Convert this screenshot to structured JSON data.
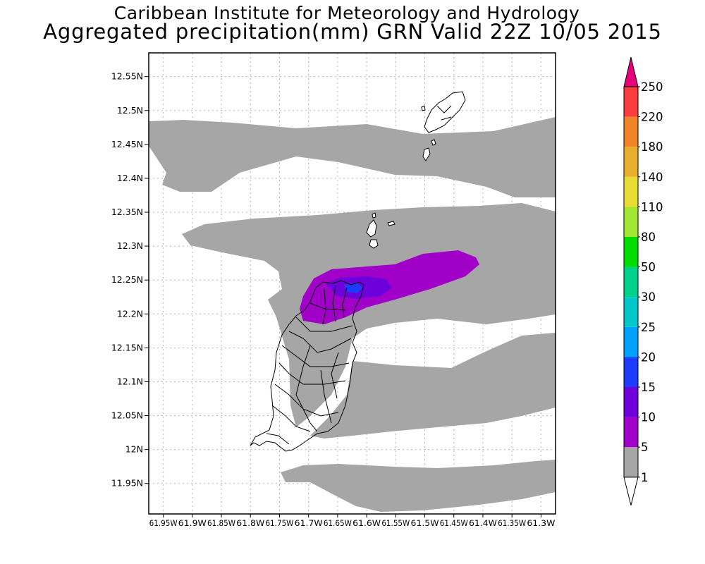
{
  "header": {
    "institute": "Caribbean Institute for Meteorology and Hydrology",
    "product": "Aggregated precipitation(mm) GRN Valid 22Z 10/05 2015"
  },
  "map": {
    "lat_ticks": [
      "12.55N",
      "12.5N",
      "12.45N",
      "12.4N",
      "12.35N",
      "12.3N",
      "12.25N",
      "12.2N",
      "12.15N",
      "12.1N",
      "12.05N",
      "12N",
      "11.95N"
    ],
    "lon_ticks": [
      "61.95W",
      "61.9W",
      "61.85W",
      "61.8W",
      "61.75W",
      "61.7W",
      "61.65W",
      "61.6W",
      "61.55W",
      "61.5W",
      "61.45W",
      "61.4W",
      "61.35W",
      "61.3W"
    ],
    "lat_range": [
      11.905,
      12.585
    ],
    "lon_range": [
      -61.975,
      -61.275
    ]
  },
  "legend": {
    "labels": [
      "1",
      "5",
      "10",
      "15",
      "20",
      "25",
      "30",
      "50",
      "80",
      "110",
      "140",
      "180",
      "220",
      "250"
    ],
    "colors": [
      "#ffffff",
      "#a6a6a6",
      "#a000c8",
      "#6e00dc",
      "#1e3cff",
      "#00a0ff",
      "#00c8c8",
      "#00d28c",
      "#00dc00",
      "#a0e632",
      "#e6dc32",
      "#e6af2d",
      "#f08228",
      "#fa3c3c",
      "#e6007a"
    ]
  }
}
